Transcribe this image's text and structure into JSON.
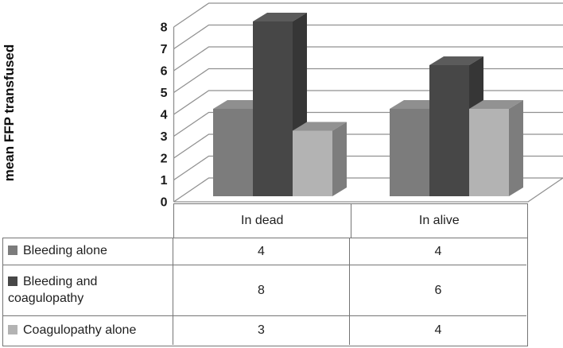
{
  "figure": {
    "background": "#ffffff",
    "grid_color": "#919191",
    "table_border_color": "#757575",
    "text_color": "#1a1a1a"
  },
  "chart_data": {
    "type": "bar",
    "style": "3d-column",
    "title": "",
    "xlabel": "",
    "ylabel": "mean FFP transfused",
    "categories": [
      "In dead",
      "In alive"
    ],
    "series": [
      {
        "name": "Bleeding alone",
        "values": [
          4,
          4
        ],
        "color": "#7C7C7C",
        "color_top": "#8F8F8F",
        "color_side": "#686868"
      },
      {
        "name": "Bleeding and coagulopathy",
        "values": [
          8,
          6
        ],
        "color": "#474747",
        "color_top": "#5B5B5B",
        "color_side": "#363636"
      },
      {
        "name": "Coagulopathy alone",
        "values": [
          3,
          4
        ],
        "color": "#B3B3B3",
        "color_top": "#929292",
        "color_side": "#7D7D7D"
      }
    ],
    "ylim": [
      0,
      8
    ],
    "ytick_step": 1,
    "grid": true,
    "legend_position": "data-table-left"
  },
  "table": {
    "columns": [
      "In dead",
      "In alive"
    ],
    "rows": [
      {
        "label": "Bleeding alone",
        "key_color": "#7C7C7C",
        "values": [
          "4",
          "4"
        ]
      },
      {
        "label": "Bleeding and coagulopathy",
        "key_color": "#474747",
        "values": [
          "8",
          "6"
        ]
      },
      {
        "label": "Coagulopathy alone",
        "key_color": "#B3B3B3",
        "values": [
          "3",
          "4"
        ]
      }
    ]
  }
}
